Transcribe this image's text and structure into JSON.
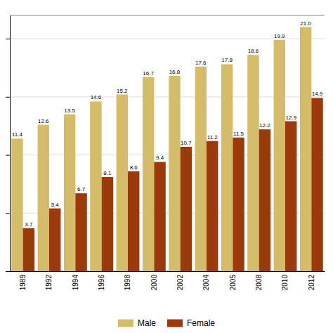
{
  "chart_data": {
    "type": "bar",
    "categories": [
      "1989",
      "1992",
      "1994",
      "1996",
      "1998",
      "2000",
      "2002",
      "2004",
      "2005",
      "2008",
      "2010",
      "2012"
    ],
    "series": [
      {
        "name": "Male",
        "color": "#D4BC6A",
        "values": [
          11.4,
          12.6,
          13.5,
          14.6,
          15.2,
          16.7,
          16.8,
          17.6,
          17.8,
          18.6,
          19.9,
          21.0
        ],
        "value_labels": [
          "11.4",
          "12.6",
          "13.5",
          "14.6",
          "15.2",
          "16.7",
          "16.8",
          "17.6",
          "17.8",
          "18.6",
          "19.9",
          "21.0"
        ]
      },
      {
        "name": "Female",
        "color": "#9B3A0A",
        "values": [
          3.7,
          5.4,
          6.7,
          8.1,
          8.6,
          9.4,
          10.7,
          11.2,
          11.5,
          12.2,
          12.9,
          14.9
        ],
        "value_labels": [
          "3.7",
          "5.4",
          "6.7",
          "8.1",
          "8.6",
          "9.4",
          "10.7",
          "11.2",
          "11.5",
          "12.2",
          "12.9",
          "14.9"
        ]
      }
    ],
    "ylim": [
      0,
      22
    ],
    "yticks": [
      0,
      5,
      10,
      15,
      20
    ],
    "grid": true,
    "data_labels": true,
    "tick_labels": "x",
    "legend": "bottom"
  }
}
